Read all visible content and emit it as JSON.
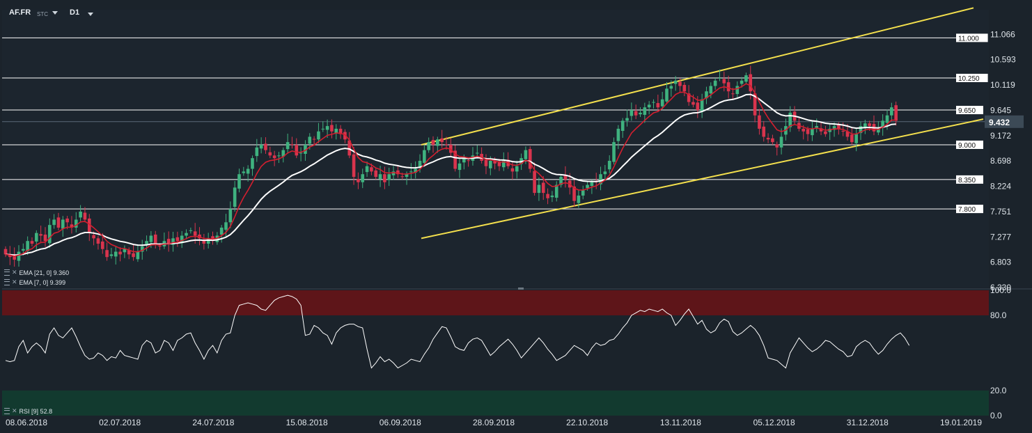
{
  "header": {
    "symbol": "AF.FR",
    "type": "STC",
    "interval": "D1"
  },
  "indicators": {
    "ema21": "EMA [21, 0] 9.360",
    "ema7": "EMA [7, 0] 9.399",
    "rsi": "RSI [9] 52.8"
  },
  "colors": {
    "background": "#1b232b",
    "bull": "#3fb27f",
    "bear": "#d9344d",
    "ema_fast": "#d31f2f",
    "ema_slow": "#ffffff",
    "channel": "#f4e04d",
    "overbought": "#5e1519",
    "oversold": "#123a2f"
  },
  "chart_data": [
    {
      "type": "candlestick",
      "symbol": "AF.FR",
      "y_tick_labels": [
        "11.066",
        "10.593",
        "10.119",
        "9.645",
        "9.172",
        "8.698",
        "8.224",
        "7.751",
        "7.277",
        "6.803",
        "6.330"
      ],
      "ylim": [
        6.33,
        11.5
      ],
      "x_tick_labels": [
        "08.06.2018",
        "02.07.2018",
        "24.07.2018",
        "15.08.2018",
        "06.09.2018",
        "28.09.2018",
        "22.10.2018",
        "13.11.2018",
        "05.12.2018",
        "31.12.2018",
        "19.01.2019"
      ],
      "horizontal_levels": [
        "11.000",
        "10.250",
        "9.650",
        "9.000",
        "8.350",
        "7.800"
      ],
      "last_price": "9.432",
      "channel": {
        "upper": [
          [
            "22.08.2018",
            9.0
          ],
          [
            "19.01.2019",
            11.56
          ]
        ],
        "lower": [
          [
            "22.08.2018",
            7.25
          ],
          [
            "19.01.2019",
            9.48
          ]
        ]
      },
      "close": [
        6.95,
        6.9,
        6.85,
        7.0,
        7.05,
        7.2,
        7.15,
        7.35,
        7.3,
        7.2,
        7.5,
        7.6,
        7.45,
        7.6,
        7.55,
        7.45,
        7.6,
        7.75,
        7.6,
        7.35,
        7.25,
        7.15,
        7.05,
        6.9,
        6.95,
        7.0,
        6.95,
        7.05,
        6.95,
        6.9,
        7.0,
        7.1,
        7.2,
        7.3,
        7.15,
        7.1,
        7.2,
        7.15,
        7.25,
        7.2,
        7.3,
        7.35,
        7.4,
        7.3,
        7.25,
        7.15,
        7.25,
        7.2,
        7.3,
        7.45,
        7.55,
        7.8,
        8.2,
        8.45,
        8.5,
        8.55,
        8.75,
        8.95,
        9.0,
        8.9,
        8.8,
        8.75,
        8.8,
        8.9,
        9.05,
        9.0,
        8.8,
        8.85,
        9.0,
        9.15,
        9.1,
        9.25,
        9.3,
        9.35,
        9.25,
        9.3,
        9.2,
        9.1,
        8.8,
        8.4,
        8.3,
        8.45,
        8.6,
        8.5,
        8.4,
        8.45,
        8.3,
        8.45,
        8.5,
        8.45,
        8.4,
        8.45,
        8.5,
        8.55,
        8.7,
        8.9,
        9.05,
        9.0,
        9.1,
        9.05,
        9.0,
        8.85,
        8.55,
        8.65,
        8.75,
        8.7,
        8.8,
        8.85,
        8.7,
        8.6,
        8.7,
        8.65,
        8.6,
        8.7,
        8.6,
        8.5,
        8.6,
        8.75,
        8.9,
        8.55,
        8.1,
        8.25,
        8.1,
        8.0,
        8.05,
        8.25,
        8.4,
        8.35,
        8.2,
        7.95,
        8.05,
        8.15,
        8.25,
        8.3,
        8.3,
        8.45,
        8.5,
        8.7,
        9.05,
        9.3,
        9.45,
        9.5,
        9.65,
        9.55,
        9.6,
        9.7,
        9.75,
        9.8,
        9.7,
        9.85,
        10.05,
        10.1,
        10.2,
        10.1,
        10.0,
        9.8,
        9.75,
        9.65,
        9.85,
        10.0,
        10.1,
        10.2,
        10.25,
        10.15,
        10.0,
        9.95,
        10.1,
        10.2,
        10.3,
        10.0,
        9.55,
        9.3,
        9.15,
        9.1,
        9.05,
        8.95,
        9.15,
        9.35,
        9.6,
        9.45,
        9.3,
        9.25,
        9.2,
        9.3,
        9.35,
        9.25,
        9.2,
        9.3,
        9.35,
        9.3,
        9.25,
        9.15,
        9.05,
        9.2,
        9.35,
        9.4,
        9.35,
        9.25,
        9.3,
        9.45,
        9.55,
        9.7,
        9.45
      ]
    },
    {
      "type": "line",
      "name": "RSI [9]",
      "ylim": [
        0,
        100
      ],
      "y_tick_labels": [
        "100.0",
        "80.0",
        "20.0",
        "0.0"
      ],
      "bands": {
        "overbought": [
          80,
          100
        ],
        "oversold": [
          0,
          20
        ]
      },
      "values": [
        44,
        43,
        44,
        55,
        60,
        50,
        55,
        58,
        55,
        50,
        65,
        70,
        64,
        62,
        66,
        70,
        63,
        55,
        48,
        45,
        46,
        50,
        48,
        44,
        47,
        46,
        52,
        48,
        47,
        46,
        45,
        56,
        60,
        58,
        50,
        52,
        60,
        58,
        52,
        60,
        62,
        65,
        66,
        58,
        52,
        45,
        52,
        56,
        50,
        60,
        65,
        66,
        80,
        88,
        89,
        90,
        89,
        88,
        85,
        84,
        88,
        92,
        94,
        95,
        96,
        95,
        93,
        88,
        64,
        65,
        72,
        70,
        66,
        64,
        57,
        66,
        70,
        72,
        73,
        73,
        71,
        70,
        53,
        38,
        42,
        47,
        43,
        45,
        42,
        38,
        40,
        42,
        45,
        44,
        43,
        49,
        54,
        61,
        66,
        71,
        70,
        63,
        55,
        53,
        52,
        58,
        61,
        62,
        60,
        54,
        48,
        51,
        55,
        58,
        61,
        57,
        52,
        46,
        50,
        54,
        58,
        62,
        58,
        53,
        49,
        44,
        46,
        48,
        52,
        56,
        54,
        52,
        48,
        54,
        58,
        56,
        57,
        60,
        61,
        65,
        70,
        74,
        80,
        82,
        84,
        83,
        85,
        84,
        83,
        85,
        82,
        80,
        72,
        76,
        81,
        85,
        79,
        73,
        76,
        69,
        66,
        68,
        74,
        77,
        75,
        67,
        64,
        66,
        69,
        72,
        69,
        64,
        56,
        46,
        45,
        44,
        41,
        38,
        50,
        56,
        62,
        58,
        54,
        51,
        53,
        56,
        60,
        59,
        56,
        53,
        51,
        47,
        48,
        55,
        58,
        60,
        58,
        53,
        49,
        52,
        57,
        61,
        64,
        66,
        62,
        56
      ]
    }
  ]
}
